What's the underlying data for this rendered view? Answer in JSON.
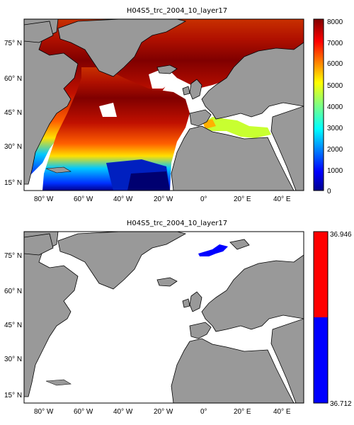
{
  "colors": {
    "land": "#999999",
    "coast": "#000000",
    "ocean_empty": "#ffffff"
  },
  "panels": [
    {
      "title": "H04S5_trc_2004_10_layer17",
      "lon_ticks": [
        "80° W",
        "60° W",
        "40° W",
        "20° W",
        "0°",
        "20° E",
        "40° E"
      ],
      "lat_ticks": [
        "75° N",
        "60° N",
        "45° N",
        "30° N",
        "15° N"
      ],
      "colorbar": {
        "type": "jet",
        "min": 0,
        "max": 8000,
        "tick_labels": [
          "8000",
          "7000",
          "6000",
          "5000",
          "4000",
          "3000",
          "2000",
          "1000",
          "0"
        ]
      }
    },
    {
      "title": "H04S5_trc_2004_10_layer17",
      "lon_ticks": [
        "80° W",
        "60° W",
        "40° W",
        "20° W",
        "0°",
        "20° E",
        "40° E"
      ],
      "lat_ticks": [
        "75° N",
        "60° N",
        "45° N",
        "30° N",
        "15° N"
      ],
      "colorbar": {
        "type": "two-class",
        "max_label": "36.946",
        "min_label": "36.712",
        "class_colors": [
          "#ff0000",
          "#0000ff"
        ]
      }
    }
  ]
}
